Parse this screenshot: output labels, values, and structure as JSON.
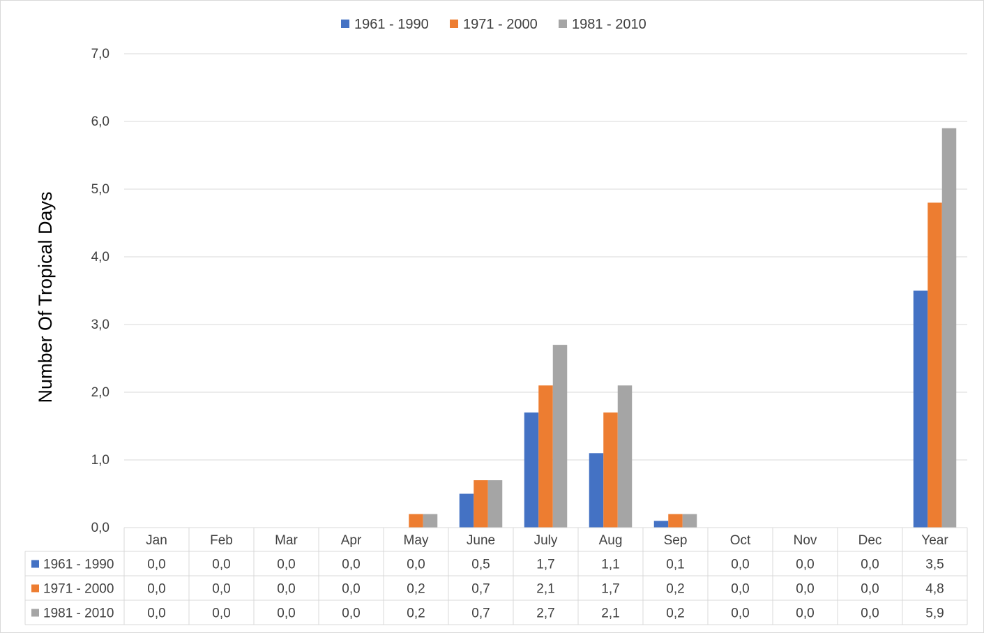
{
  "chart_data": {
    "type": "bar",
    "title": "",
    "xlabel": "",
    "ylabel": "Number Of Tropical Days",
    "ylim": [
      0,
      7
    ],
    "yticks": [
      "0,0",
      "1,0",
      "2,0",
      "3,0",
      "4,0",
      "5,0",
      "6,0",
      "7,0"
    ],
    "grid": true,
    "legend_position": "top",
    "data_table": true,
    "categories": [
      "Jan",
      "Feb",
      "Mar",
      "Apr",
      "May",
      "June",
      "July",
      "Aug",
      "Sep",
      "Oct",
      "Nov",
      "Dec",
      "Year"
    ],
    "series": [
      {
        "name": "1961 - 1990",
        "color": "#4472C4",
        "values": [
          0.0,
          0.0,
          0.0,
          0.0,
          0.0,
          0.5,
          1.7,
          1.1,
          0.1,
          0.0,
          0.0,
          0.0,
          3.5
        ],
        "labels": [
          "0,0",
          "0,0",
          "0,0",
          "0,0",
          "0,0",
          "0,5",
          "1,7",
          "1,1",
          "0,1",
          "0,0",
          "0,0",
          "0,0",
          "3,5"
        ]
      },
      {
        "name": "1971 - 2000",
        "color": "#ED7D31",
        "values": [
          0.0,
          0.0,
          0.0,
          0.0,
          0.2,
          0.7,
          2.1,
          1.7,
          0.2,
          0.0,
          0.0,
          0.0,
          4.8
        ],
        "labels": [
          "0,0",
          "0,0",
          "0,0",
          "0,0",
          "0,2",
          "0,7",
          "2,1",
          "1,7",
          "0,2",
          "0,0",
          "0,0",
          "0,0",
          "4,8"
        ]
      },
      {
        "name": "1981 - 2010",
        "color": "#A5A5A5",
        "values": [
          0.0,
          0.0,
          0.0,
          0.0,
          0.2,
          0.7,
          2.7,
          2.1,
          0.2,
          0.0,
          0.0,
          0.0,
          5.9
        ],
        "labels": [
          "0,0",
          "0,0",
          "0,0",
          "0,0",
          "0,2",
          "0,7",
          "2,7",
          "2,1",
          "0,2",
          "0,0",
          "0,0",
          "0,0",
          "5,9"
        ]
      }
    ]
  }
}
